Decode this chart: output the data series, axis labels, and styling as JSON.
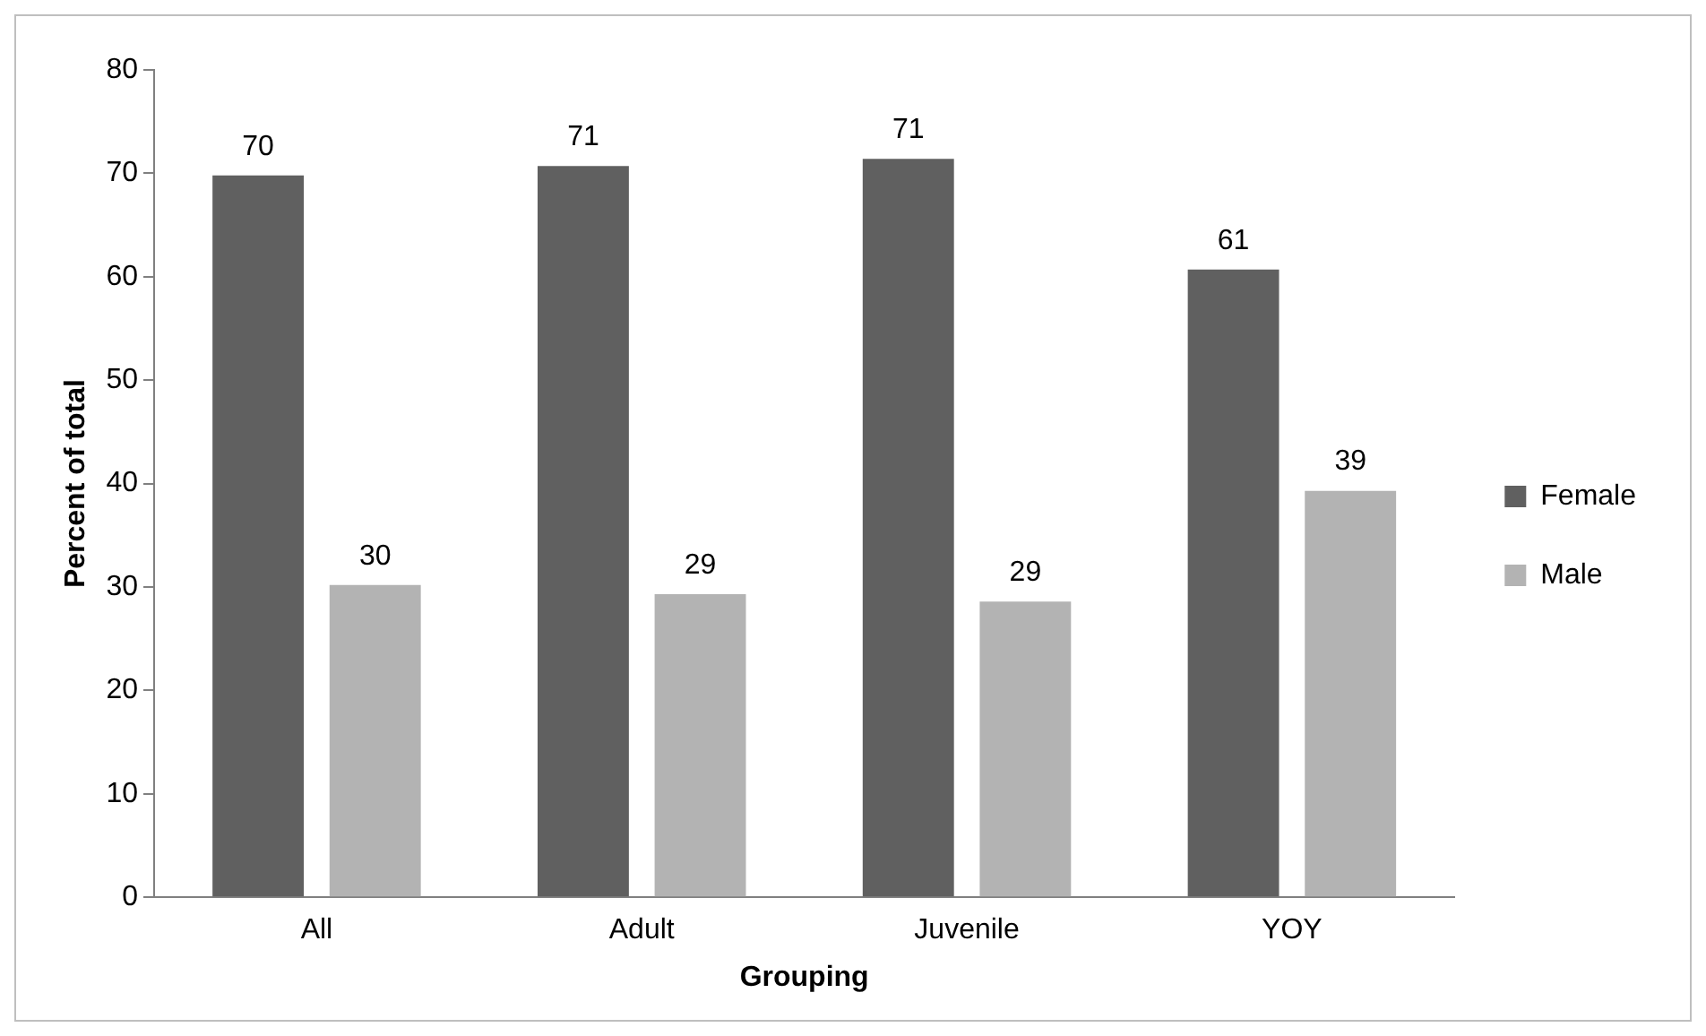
{
  "chart_data": {
    "type": "bar",
    "xlabel": "Grouping",
    "ylabel": "Percent of total",
    "categories": [
      "All",
      "Adult",
      "Juvenile",
      "YOY"
    ],
    "series": [
      {
        "name": "Female",
        "color": "#606060",
        "values": [
          69.8,
          70.7,
          71.4,
          60.7
        ],
        "value_labels": [
          "70",
          "71",
          "71",
          "61"
        ]
      },
      {
        "name": "Male",
        "color": "#b3b3b3",
        "values": [
          30.2,
          29.3,
          28.6,
          39.3
        ],
        "value_labels": [
          "30",
          "29",
          "29",
          "39"
        ]
      }
    ],
    "ylim": [
      0,
      80
    ],
    "yticks": [
      0,
      10,
      20,
      30,
      40,
      50,
      60,
      70,
      80
    ],
    "grid": false,
    "legend": "right"
  }
}
